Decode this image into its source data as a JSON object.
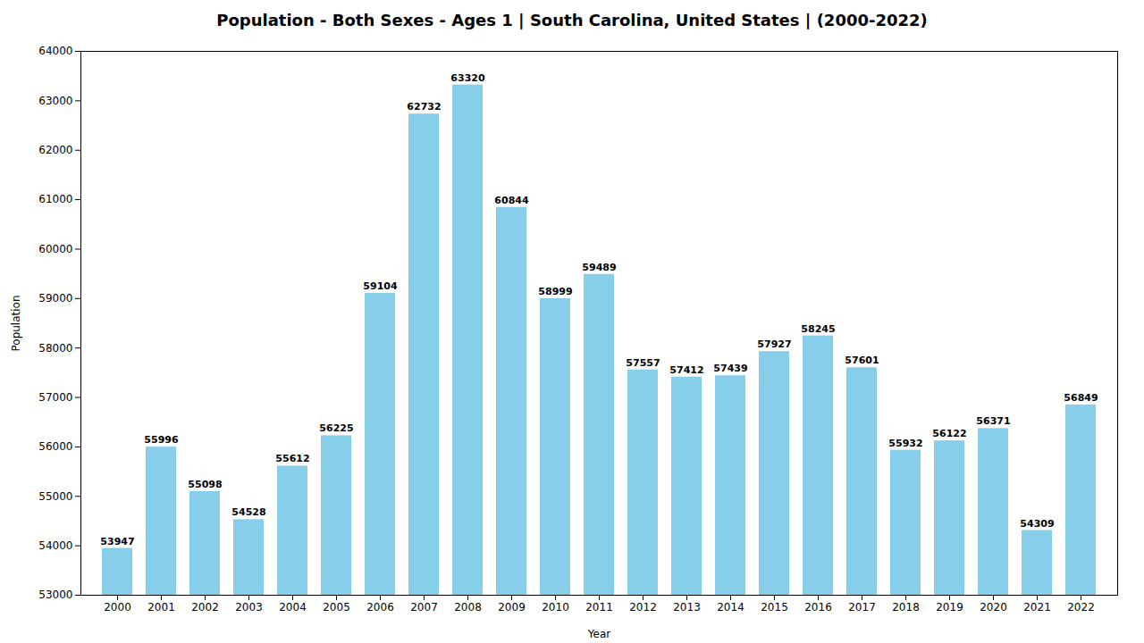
{
  "chart_data": {
    "type": "bar",
    "title": "Population - Both Sexes - Ages 1 | South Carolina, United States |  (2000-2022)",
    "xlabel": "Year",
    "ylabel": "Population",
    "categories": [
      "2000",
      "2001",
      "2002",
      "2003",
      "2004",
      "2005",
      "2006",
      "2007",
      "2008",
      "2009",
      "2010",
      "2011",
      "2012",
      "2013",
      "2014",
      "2015",
      "2016",
      "2017",
      "2018",
      "2019",
      "2020",
      "2021",
      "2022"
    ],
    "values": [
      53947,
      55996,
      55098,
      54528,
      55612,
      56225,
      59104,
      62732,
      63320,
      60844,
      58999,
      59489,
      57557,
      57412,
      57439,
      57927,
      58245,
      57601,
      55932,
      56122,
      56371,
      54309,
      56849
    ],
    "color": "#87CEEB",
    "ylim": [
      53000,
      64000
    ],
    "yticks": [
      53000,
      54000,
      55000,
      56000,
      57000,
      58000,
      59000,
      60000,
      61000,
      62000,
      63000,
      64000
    ],
    "grid": false,
    "data_labels": true
  }
}
